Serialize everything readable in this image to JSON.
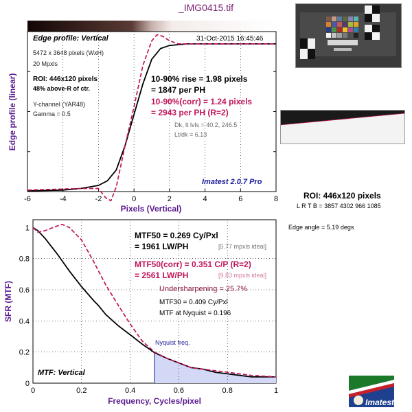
{
  "title": "_IMG0415.tif",
  "colors": {
    "measured": "#000000",
    "corrected": "#c0155a",
    "accent_purple": "#5a1a8e",
    "nyquist_label": "#1a1a9a",
    "nyquist_fill": "#d2d8f6"
  },
  "top_panel": {
    "profile_label": "Edge profile: Vertical",
    "timestamp": "31-Oct-2015 16:45:46",
    "info": [
      "5472 x 3648 pixels (WxH)",
      "20 Mpxls"
    ],
    "roi_info": [
      "ROI: 446x120 pixels",
      "48% above-R of ctr."
    ],
    "channel_info": [
      "Y-channel  (YAR48)",
      "Gamma = 0.5"
    ],
    "rise_lines": [
      "10-90% rise = 1.98 pixels",
      "= 1847 per PH"
    ],
    "corr_lines": [
      "10-90%(corr) = 1.24 pixels",
      "= 2943 per PH  (R=2)"
    ],
    "level_lines": [
      "Dk, lt lvls = 40.2, 246.5",
      "Lt/dk = 6.13"
    ],
    "version": "Imatest 2.0.7 Pro"
  },
  "bottom_panel": {
    "mtf_label": "MTF: Vertical",
    "mtf50_lines": [
      "MTF50 = 0.269 Cy/Pxl",
      "= 1961 LW/PH"
    ],
    "mtf50_ideal": "[5.77 mpxls ideal]",
    "mtf50c_lines": [
      "MTF50(corr) = 0.351 C/P  (R=2)",
      "= 2561 LW/PH"
    ],
    "mtf50c_ideal": "[9.83 mpxls ideal]",
    "undersharpening": "Undersharpening = 25.7%",
    "mtf30": "MTF30 = 0.409 Cy/Pxl",
    "mtf_nyquist": "MTF at Nyquist = 0.196",
    "nyquist_label": "Nyquist freq."
  },
  "right_panel": {
    "roi_title": "ROI: 446x120 pixels",
    "roi_coords": "L R  T B = 3857 4302  966 1085",
    "edge_angle": "Edge angle = 5.19 degs",
    "logo_text": "Imatest"
  },
  "chart_data": [
    {
      "type": "line",
      "title": "Edge profile: Vertical",
      "xlabel": "Pixels (Vertical)",
      "ylabel": "Edge profile (linear)",
      "xlim": [
        -6,
        8
      ],
      "ylim": [
        0,
        1.04
      ],
      "xticks": [
        -6,
        -4,
        -2,
        0,
        2,
        4,
        6,
        8
      ],
      "grid": true,
      "series": [
        {
          "style": "solid",
          "x": [
            -6,
            -4,
            -3,
            -2,
            -1.5,
            -1,
            -0.5,
            0,
            0.5,
            1,
            1.5,
            2,
            3,
            4,
            6,
            8
          ],
          "y": [
            0.005,
            0.01,
            0.02,
            0.04,
            0.07,
            0.14,
            0.3,
            0.5,
            0.7,
            0.86,
            0.93,
            0.95,
            0.96,
            0.96,
            0.96,
            0.96
          ]
        },
        {
          "style": "dashed",
          "x": [
            -6,
            -3,
            -2,
            -1.6,
            -1.3,
            -1,
            -0.5,
            0,
            0.5,
            1,
            1.3,
            1.6,
            2,
            2.5,
            3,
            4,
            6,
            8
          ],
          "y": [
            0.01,
            0.02,
            0.02,
            -0.04,
            -0.06,
            0.03,
            0.3,
            0.55,
            0.82,
            0.98,
            1.02,
            1.01,
            0.98,
            0.96,
            0.96,
            0.96,
            0.96,
            0.96
          ]
        }
      ]
    },
    {
      "type": "line",
      "title": "MTF: Vertical",
      "xlabel": "Frequency, Cycles/pixel",
      "ylabel": "SFR (MTF)",
      "xlim": [
        0,
        1
      ],
      "ylim": [
        0,
        1.05
      ],
      "xticks": [
        0,
        0.2,
        0.4,
        0.6,
        0.8,
        1
      ],
      "yticks": [
        0,
        0.2,
        0.4,
        0.6,
        0.8,
        1
      ],
      "grid": true,
      "nyquist": 0.5,
      "series": [
        {
          "style": "solid",
          "x": [
            0,
            0.02,
            0.05,
            0.1,
            0.15,
            0.2,
            0.25,
            0.269,
            0.3,
            0.35,
            0.409,
            0.45,
            0.5,
            0.55,
            0.6,
            0.65,
            0.7,
            0.75,
            0.8,
            0.85,
            0.9,
            0.95,
            1.0
          ],
          "y": [
            1.0,
            0.98,
            0.93,
            0.83,
            0.72,
            0.62,
            0.53,
            0.5,
            0.44,
            0.37,
            0.3,
            0.25,
            0.196,
            0.16,
            0.13,
            0.1,
            0.09,
            0.07,
            0.06,
            0.05,
            0.04,
            0.04,
            0.04
          ]
        },
        {
          "style": "dashed",
          "x": [
            0,
            0.02,
            0.05,
            0.1,
            0.12,
            0.15,
            0.2,
            0.25,
            0.3,
            0.351,
            0.4,
            0.45,
            0.5,
            0.55,
            0.6,
            0.65,
            0.7,
            0.8,
            0.9,
            1.0
          ],
          "y": [
            1.0,
            0.97,
            0.98,
            1.01,
            1.02,
            1.0,
            0.92,
            0.78,
            0.63,
            0.5,
            0.38,
            0.27,
            0.2,
            0.16,
            0.13,
            0.1,
            0.09,
            0.07,
            0.05,
            0.04
          ]
        }
      ]
    }
  ]
}
